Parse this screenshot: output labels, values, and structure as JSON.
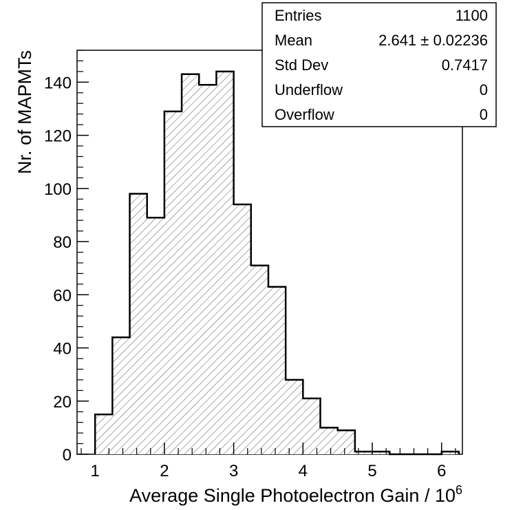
{
  "chart_data": {
    "type": "bar",
    "title": "",
    "xlabel": "Average Single Photoelectron Gain / 10",
    "xlabel_exponent": "6",
    "ylabel": "Nr. of MAPMTs",
    "xlim": [
      0.74,
      6.3
    ],
    "ylim": [
      0,
      152
    ],
    "bin_width": 0.25,
    "bin_low_edges": [
      1.0,
      1.25,
      1.5,
      1.75,
      2.0,
      2.25,
      2.5,
      2.75,
      3.0,
      3.25,
      3.5,
      3.75,
      4.0,
      4.25,
      4.5,
      4.75,
      5.0,
      5.25,
      5.5,
      5.75,
      6.0
    ],
    "values": [
      15,
      44,
      98,
      89,
      129,
      143,
      139,
      144,
      94,
      71,
      63,
      28,
      21,
      10,
      9,
      1,
      1,
      0,
      0,
      0,
      1
    ],
    "x_ticks": [
      1,
      2,
      3,
      4,
      5,
      6
    ],
    "x_tick_labels": [
      "1",
      "2",
      "3",
      "4",
      "5",
      "6"
    ],
    "y_ticks": [
      0,
      20,
      40,
      60,
      80,
      100,
      120,
      140
    ],
    "y_tick_labels": [
      "0",
      "20",
      "40",
      "60",
      "80",
      "100",
      "120",
      "140"
    ],
    "fill_style": "diagonal-hatch",
    "grid": false,
    "stats_box": {
      "placement": "top-right",
      "rows": [
        {
          "label": "Entries",
          "value": "1100"
        },
        {
          "label": "Mean",
          "value": "2.641 ± 0.02236"
        },
        {
          "label": "Std Dev",
          "value": "0.7417"
        },
        {
          "label": "Underflow",
          "value": "0"
        },
        {
          "label": "Overflow",
          "value": "0"
        }
      ]
    }
  }
}
